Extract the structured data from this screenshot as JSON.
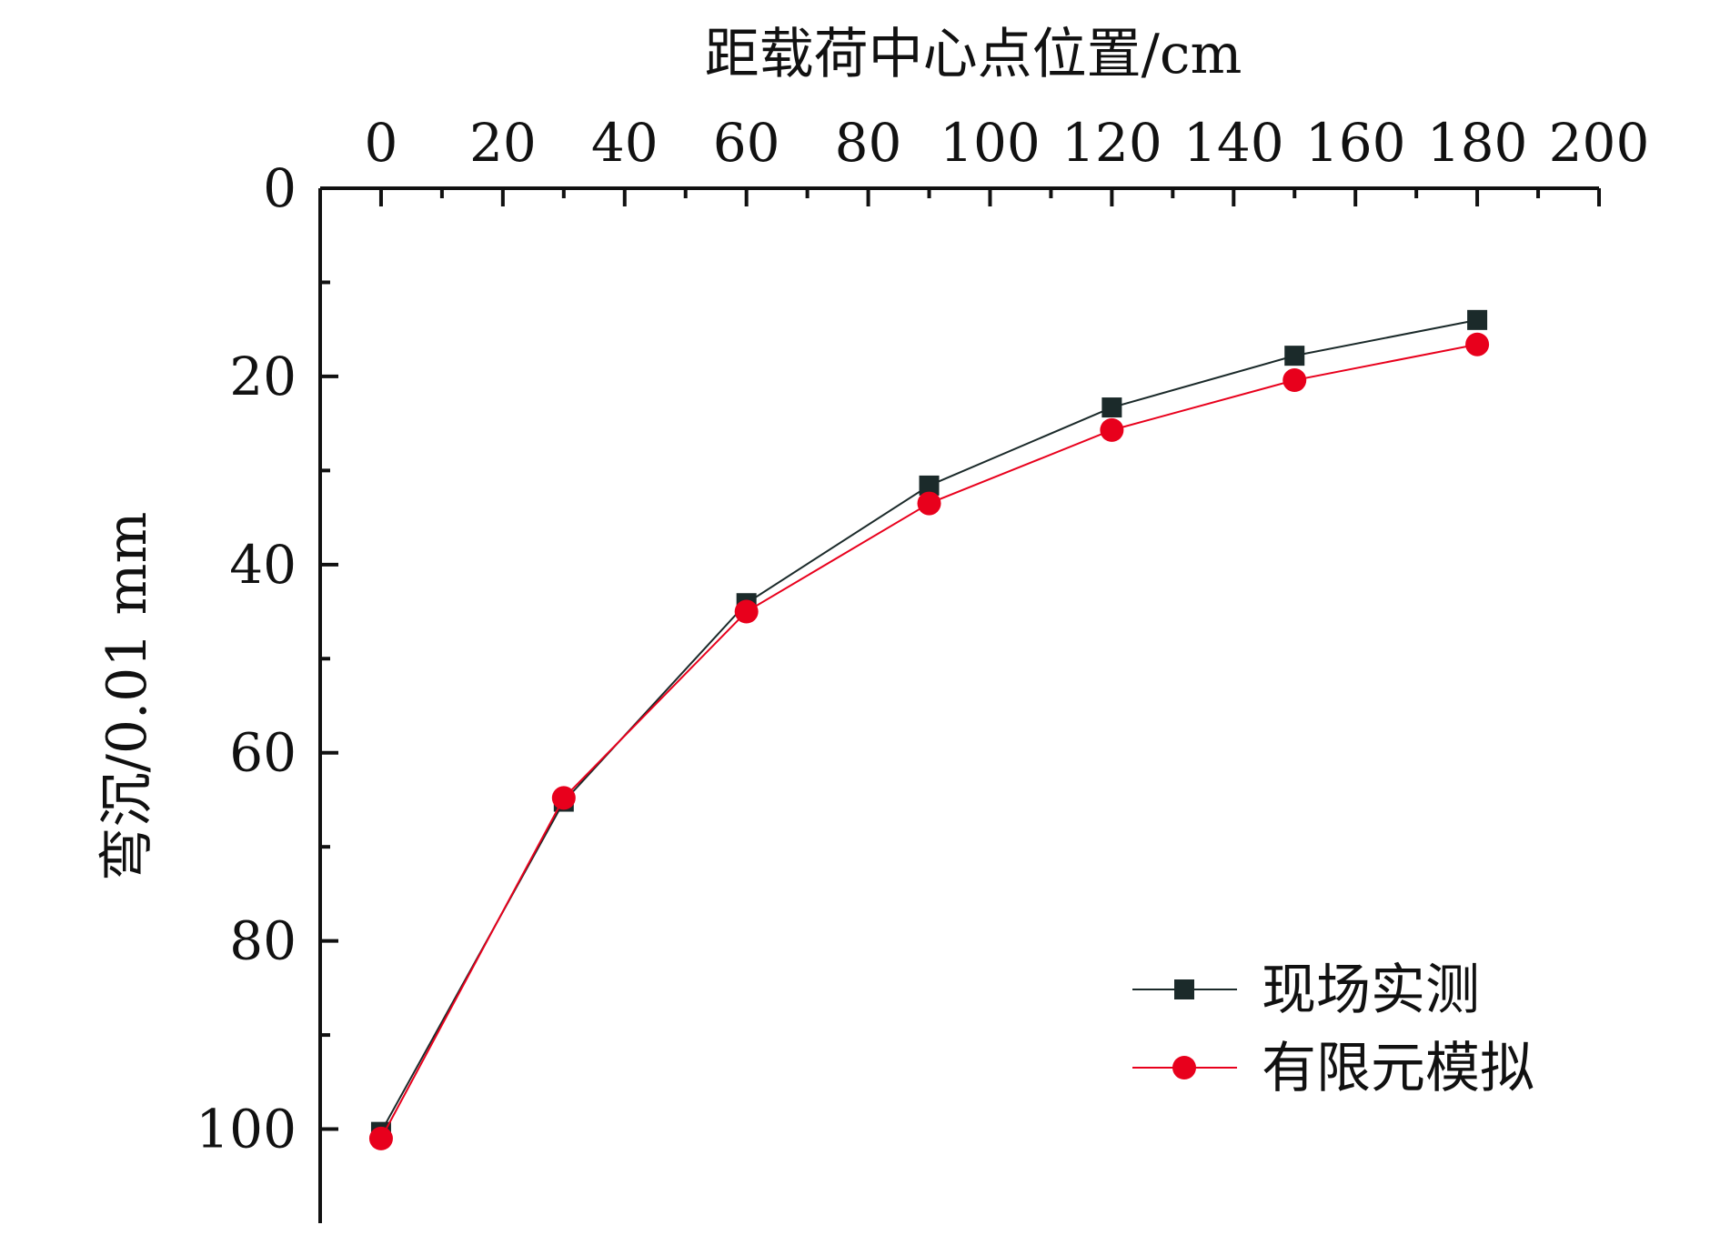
{
  "chart_data": {
    "type": "line",
    "xlabel": "距载荷中心点位置/cm",
    "ylabel": "弯沉/0.01 mm",
    "xlim": [
      -10,
      200
    ],
    "ylim": [
      0,
      110
    ],
    "y_inverted": true,
    "x_axis_position": "top",
    "x_ticks": [
      0,
      20,
      40,
      60,
      80,
      100,
      120,
      140,
      160,
      180,
      200
    ],
    "y_ticks": [
      0,
      20,
      40,
      60,
      80,
      100
    ],
    "grid": false,
    "legend_position": "bottom-right",
    "x": [
      0,
      30,
      60,
      90,
      120,
      150,
      180
    ],
    "series": [
      {
        "name": "现场实测",
        "marker": "square",
        "color": "#1b2a2a",
        "values": [
          100.3,
          65.2,
          44.1,
          31.6,
          23.3,
          17.8,
          14.0
        ]
      },
      {
        "name": "有限元模拟",
        "marker": "circle",
        "color": "#e8001c",
        "values": [
          101.0,
          64.8,
          45.0,
          33.5,
          25.7,
          20.4,
          16.6
        ]
      }
    ]
  }
}
